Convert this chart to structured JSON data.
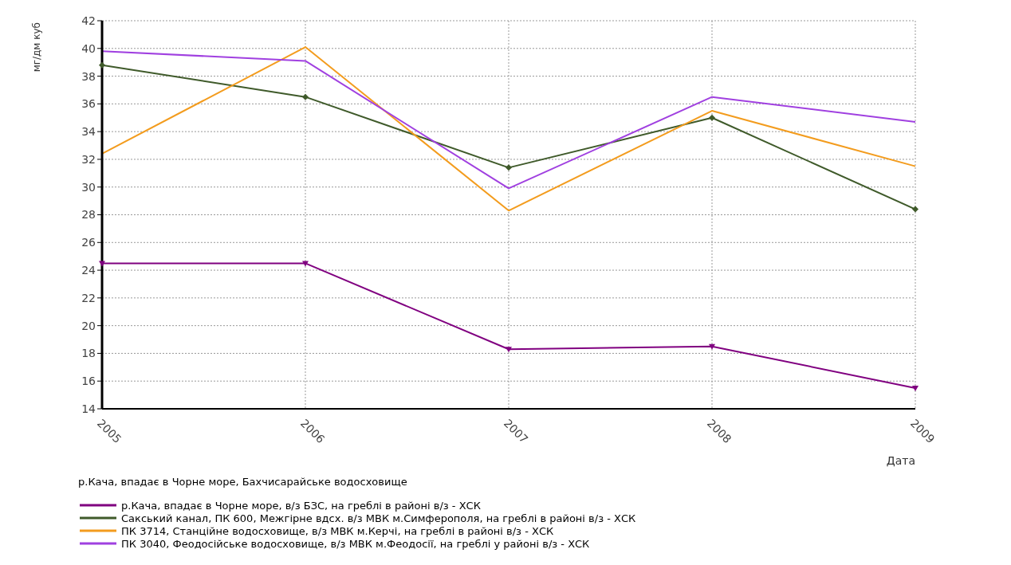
{
  "chart_data": {
    "type": "line",
    "ylabel": "мг/дм куб",
    "xlabel": "Дата",
    "legend_title": "р.Кача, впадає в Чорне море, Бахчисарайське водосховище",
    "categories": [
      "2005",
      "2006",
      "2007",
      "2008",
      "2009"
    ],
    "series": [
      {
        "name": "р.Кача, впадає в Чорне море, в/з БЗС, на греблі в районі в/з - ХСК",
        "color": "#800080",
        "marker": "triangle",
        "values": [
          24.5,
          24.5,
          18.3,
          18.5,
          15.5
        ]
      },
      {
        "name": "Сакський канал, ПК 600, Межгірне вдсх. в/з МВК м.Симферополя, на греблі в районі в/з - ХСК",
        "color": "#3f5a2a",
        "marker": "diamond",
        "values": [
          38.8,
          36.5,
          31.4,
          35.0,
          28.4
        ]
      },
      {
        "name": "ПК 3714, Станційне водосховище, в/з МВК м.Керчі, на греблі  в районі в/з - ХСК",
        "color": "#f39c1e",
        "marker": "none",
        "values": [
          32.4,
          40.1,
          28.3,
          35.5,
          31.5
        ]
      },
      {
        "name": "ПК 3040, Феодосійське водосховище, в/з МВК м.Феодосії, на греблі у районі в/з - ХСК",
        "color": "#a040e0",
        "marker": "none",
        "values": [
          39.8,
          39.1,
          29.9,
          36.5,
          34.7
        ]
      }
    ],
    "ylim": [
      14,
      42
    ],
    "yticks": [
      14,
      16,
      18,
      20,
      22,
      24,
      26,
      28,
      30,
      32,
      34,
      36,
      38,
      40,
      42
    ],
    "grid": true,
    "legend": "bottom"
  }
}
